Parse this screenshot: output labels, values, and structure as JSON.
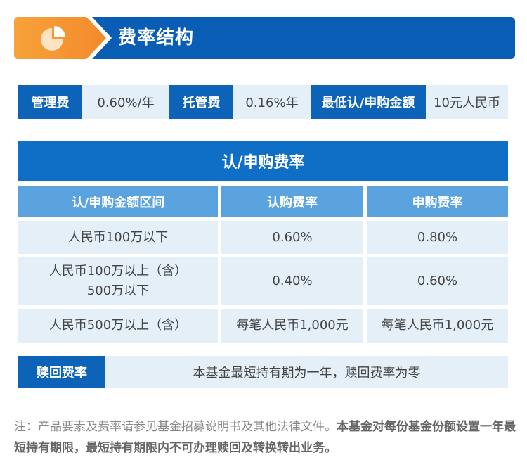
{
  "header": {
    "title": "费率结构",
    "icon": "pie-chart-icon"
  },
  "info": [
    {
      "label": "管理费",
      "value": "0.60%/年"
    },
    {
      "label": "托管费",
      "value": "0.16%年"
    },
    {
      "label": "最低认/申购金额",
      "value": "10元人民币"
    }
  ],
  "rate_table": {
    "title": "认/申购费率",
    "headers": [
      "认/申购金额区间",
      "认购费率",
      "申购费率"
    ],
    "rows": [
      {
        "range": "人民币100万以下",
        "range_line2": "",
        "subscribe": "0.60%",
        "purchase": "0.80%"
      },
      {
        "range": "人民币100万以上（含）",
        "range_line2": "500万以下",
        "subscribe": "0.40%",
        "purchase": "0.60%"
      },
      {
        "range": "人民币500万以上（含）",
        "range_line2": "",
        "subscribe": "每笔人民币1,000元",
        "purchase": "每笔人民币1,000元"
      }
    ]
  },
  "redeem": {
    "label": "赎回费率",
    "value": "本基金最短持有期为一年，赎回费率为零"
  },
  "note": {
    "normal": "注：产品要素及费率请参见基金招募说明书及其他法律文件。",
    "bold": "本基金对每份基金份额设置一年最短持有期限，最短持有期限内不可办理赎回及转换转出业务。"
  },
  "colors": {
    "primary": "#0d63b8",
    "accent": "#f3892b",
    "header_cell": "#5aa3de",
    "cell_bg": "#e4eff8"
  }
}
